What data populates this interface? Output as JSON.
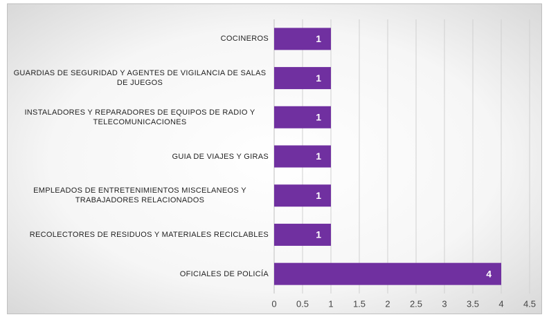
{
  "chart_data": {
    "type": "bar",
    "orientation": "horizontal",
    "categories": [
      "COCINEROS",
      "GUARDIAS DE SEGURIDAD Y AGENTES DE VIGILANCIA DE SALAS DE JUEGOS",
      "INSTALADORES Y REPARADORES DE EQUIPOS DE RADIO Y TELECOMUNICACIONES",
      "GUIA DE VIAJES Y GIRAS",
      "EMPLEADOS DE ENTRETENIMIENTOS MISCELANEOS Y TRABAJADORES RELACIONADOS",
      "RECOLECTORES DE RESIDUOS Y MATERIALES RECICLABLES",
      "OFICIALES DE POLICÍA"
    ],
    "values": [
      1,
      1,
      1,
      1,
      1,
      1,
      4
    ],
    "color": "#7030a0",
    "xlim": [
      0,
      4.5
    ],
    "xticks": [
      0,
      0.5,
      1,
      1.5,
      2,
      2.5,
      3,
      3.5,
      4,
      4.5
    ],
    "grid": true
  }
}
